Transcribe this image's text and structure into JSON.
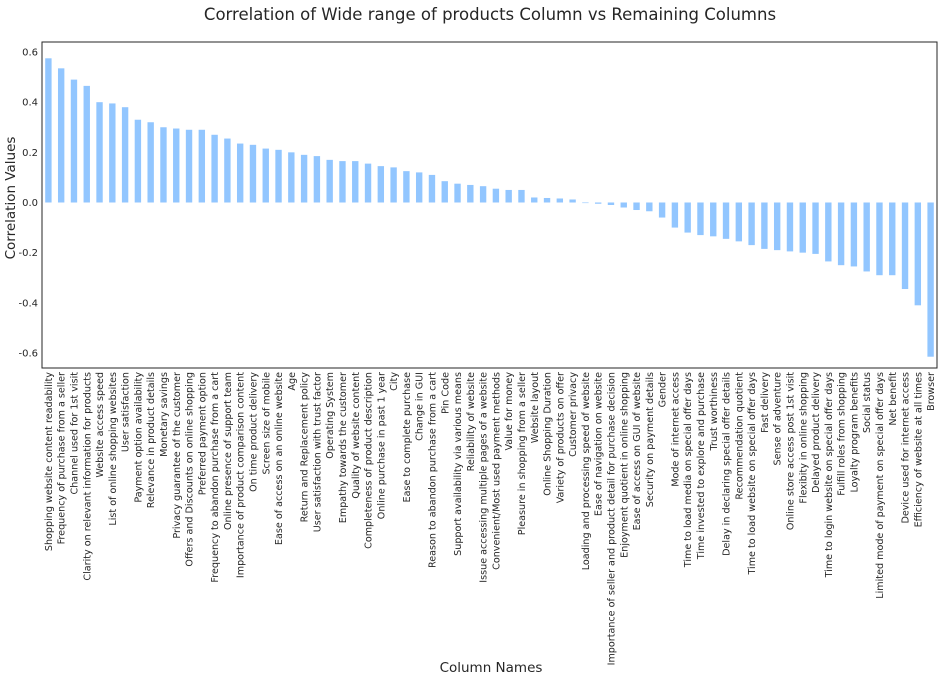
{
  "chart_data": {
    "type": "bar",
    "title": "Correlation of Wide range of products Column vs Remaining Columns",
    "xlabel": "Column Names",
    "ylabel": "Correlation Values",
    "ylim": [
      -0.66,
      0.64
    ],
    "yticks": [
      "0.6",
      "0.4",
      "0.2",
      "0.0",
      "-0.2",
      "-0.4",
      "-0.6"
    ],
    "ytick_values": [
      0.6,
      0.4,
      0.2,
      0.0,
      -0.2,
      -0.4,
      -0.6
    ],
    "bar_color": "#92c6ff",
    "grid": false,
    "categories": [
      "Shopping website content readability",
      "Frequency of purchase from a seller",
      "Channel used for 1st visit",
      "Clarity on relevant information for products",
      "Website access speed",
      "List of online shopping websites",
      "User satisfaction",
      "Payment option availability",
      "Relevance in product details",
      "Monetary savings",
      "Privacy guarantee of the customer",
      "Offers and Discounts on online shopping",
      "Preferred payment option",
      "Frequency to abandon purchase from a cart",
      "Online presence of support team",
      "Importance of product comparison content",
      "On time product delivery",
      "Screen size of mobile",
      "Ease of access on an online website",
      "Age",
      "Return and Replacement policy",
      "User satisfaction with trust factor",
      "Operating System",
      "Empathy towards the customer",
      "Quality of website content",
      "Completeness of product description",
      "Online purchase in past 1 year",
      "City",
      "Ease to complete purchase",
      "Change in GUI",
      "Reason to abandon purchase from a cart",
      "Pin Code",
      "Support availability via various means",
      "Reliability of website",
      "Issue accessing multiple pages of a website",
      "Convenient/Most used payment methods",
      "Value for money",
      "Pleasure in shopping from a seller",
      "Website layout",
      "Online Shopping Duration",
      "Variety of products on offer",
      "Customer privacy",
      "Loading and processing speed of website",
      "Ease of navigation on website",
      "Importance of seller and product detail for purchase decision",
      "Enjoyment quotient in online shopping",
      "Ease of access on GUI of website",
      "Security on payment details",
      "Gender",
      "Mode of internet access",
      "Time to load media on special offer days",
      "Time invested to explore and purchase",
      "Trust worthiness",
      "Delay in declaring special offer details",
      "Recommendation quotient",
      "Time to load website on special offer days",
      "Fast delivery",
      "Sense of adventure",
      "Online store access post 1st visit",
      "Flexibity in online shopping",
      "Delayed product delivery",
      "Time to login website on special offer days",
      "Fulfill roles from shopping",
      "Loyalty program benefits",
      "Social status",
      "Limited mode of payment on special offer days",
      "Net benefit",
      "Device used for internet access",
      "Efficiency of website at all times",
      "Browser"
    ],
    "values": [
      0.575,
      0.535,
      0.49,
      0.465,
      0.4,
      0.395,
      0.38,
      0.33,
      0.32,
      0.3,
      0.295,
      0.29,
      0.29,
      0.27,
      0.255,
      0.235,
      0.23,
      0.215,
      0.21,
      0.2,
      0.19,
      0.185,
      0.17,
      0.165,
      0.165,
      0.155,
      0.145,
      0.14,
      0.125,
      0.12,
      0.11,
      0.085,
      0.075,
      0.07,
      0.065,
      0.055,
      0.05,
      0.05,
      0.02,
      0.018,
      0.016,
      0.012,
      0.0,
      -0.005,
      -0.01,
      -0.02,
      -0.03,
      -0.035,
      -0.06,
      -0.1,
      -0.12,
      -0.13,
      -0.135,
      -0.145,
      -0.155,
      -0.17,
      -0.185,
      -0.19,
      -0.195,
      -0.2,
      -0.205,
      -0.235,
      -0.25,
      -0.255,
      -0.275,
      -0.29,
      -0.29,
      -0.345,
      -0.41,
      -0.615
    ]
  }
}
